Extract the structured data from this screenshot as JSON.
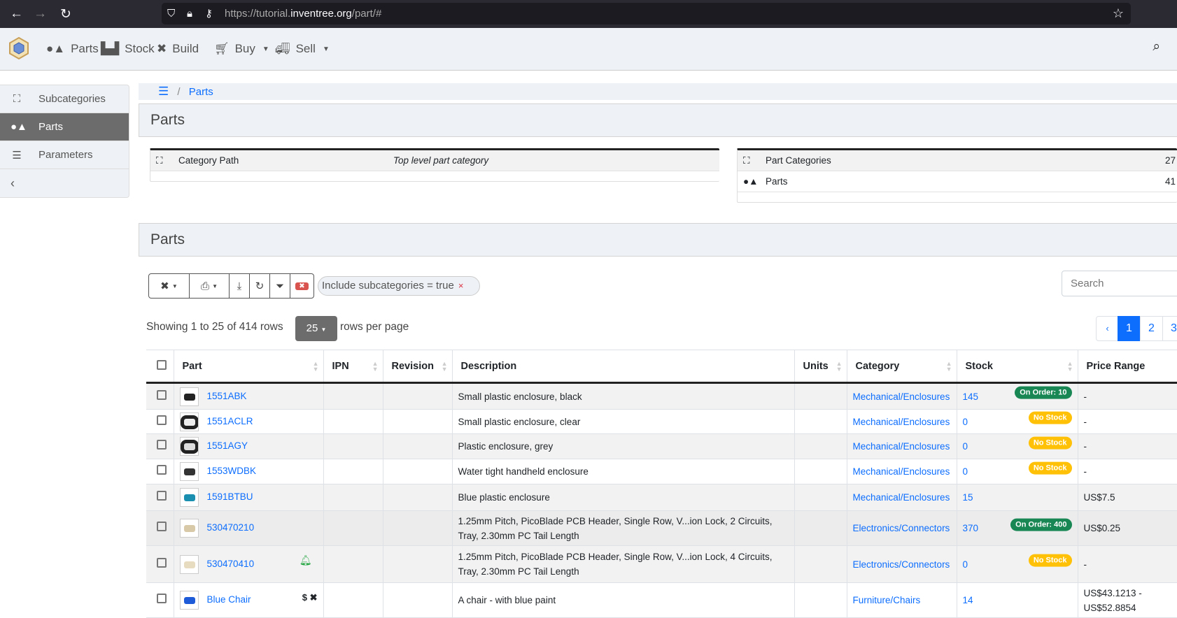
{
  "browser": {
    "url_prefix": "https://tutorial.",
    "url_domain": "inventree.org",
    "url_path": "/part/#"
  },
  "navbar": {
    "items": [
      {
        "label": "Parts",
        "icon": "shapes-icon"
      },
      {
        "label": "Stock",
        "icon": "boxes-icon"
      },
      {
        "label": "Build",
        "icon": "tools-icon"
      },
      {
        "label": "Buy",
        "icon": "cart-icon",
        "dropdown": true
      },
      {
        "label": "Sell",
        "icon": "truck-icon",
        "dropdown": true
      }
    ]
  },
  "sidebar": {
    "items": [
      {
        "label": "Subcategories",
        "icon": "sitemap-icon"
      },
      {
        "label": "Parts",
        "icon": "shapes-icon",
        "active": true
      },
      {
        "label": "Parameters",
        "icon": "list-icon"
      }
    ]
  },
  "breadcrumb": {
    "items": [
      "Parts"
    ]
  },
  "header": {
    "title": "Parts"
  },
  "info_left": {
    "label": "Category Path",
    "value": "Top level part category"
  },
  "info_right": [
    {
      "label": "Part Categories",
      "value": "27"
    },
    {
      "label": "Parts",
      "value": "41"
    }
  ],
  "parts_panel": {
    "title": "Parts"
  },
  "filter": {
    "label": "Include subcategories = true",
    "remove": "×"
  },
  "table_info": {
    "showing": "Showing 1 to 25 of 414 rows",
    "rows_per_page": "25",
    "rows_per_page_label": "rows per page"
  },
  "search": {
    "placeholder": "Search"
  },
  "pagination": {
    "prev": "‹",
    "pages": [
      "1",
      "2",
      "3"
    ],
    "current": "1"
  },
  "columns": [
    "Part",
    "IPN",
    "Revision",
    "Description",
    "Units",
    "Category",
    "Stock",
    "Price Range"
  ],
  "rows": [
    {
      "part": "1551ABK",
      "description": "Small plastic enclosure, black",
      "category": "Mechanical/Enclosures",
      "stock": "145",
      "badge": "On Order: 10",
      "badge_type": "success",
      "price": "-"
    },
    {
      "part": "1551ACLR",
      "description": "Small plastic enclosure, clear",
      "category": "Mechanical/Enclosures",
      "stock": "0",
      "badge": "No Stock",
      "badge_type": "warning",
      "price": "-"
    },
    {
      "part": "1551AGY",
      "description": "Plastic enclosure, grey",
      "category": "Mechanical/Enclosures",
      "stock": "0",
      "badge": "No Stock",
      "badge_type": "warning",
      "price": "-"
    },
    {
      "part": "1553WDBK",
      "description": "Water tight handheld enclosure",
      "category": "Mechanical/Enclosures",
      "stock": "0",
      "badge": "No Stock",
      "badge_type": "warning",
      "price": "-"
    },
    {
      "part": "1591BTBU",
      "description": "Blue plastic enclosure",
      "category": "Mechanical/Enclosures",
      "stock": "15",
      "price": "US$7.5"
    },
    {
      "part": "530470210",
      "description": "1.25mm Pitch, PicoBlade PCB Header, Single Row, V...ion Lock, 2 Circuits, Tray, 2.30mm PC Tail Length",
      "category": "Electronics/Connectors",
      "stock": "370",
      "badge": "On Order: 400",
      "badge_type": "success",
      "price": "US$0.25"
    },
    {
      "part": "530470410",
      "description": "1.25mm Pitch, PicoBlade PCB Header, Single Row, V...ion Lock, 4 Circuits, Tray, 2.30mm PC Tail Length",
      "category": "Electronics/Connectors",
      "stock": "0",
      "badge": "No Stock",
      "badge_type": "warning",
      "price": "-",
      "icon": "bell-icon"
    },
    {
      "part": "Blue Chair",
      "description": "A chair - with blue paint",
      "category": "Furniture/Chairs",
      "stock": "14",
      "price": "US$43.1213 - US$52.8854",
      "flags": "$ ✖"
    }
  ],
  "colors": {
    "primary": "#0d6efd",
    "success": "#198754",
    "warning": "#ffc107",
    "panel": "#eef2f6"
  }
}
